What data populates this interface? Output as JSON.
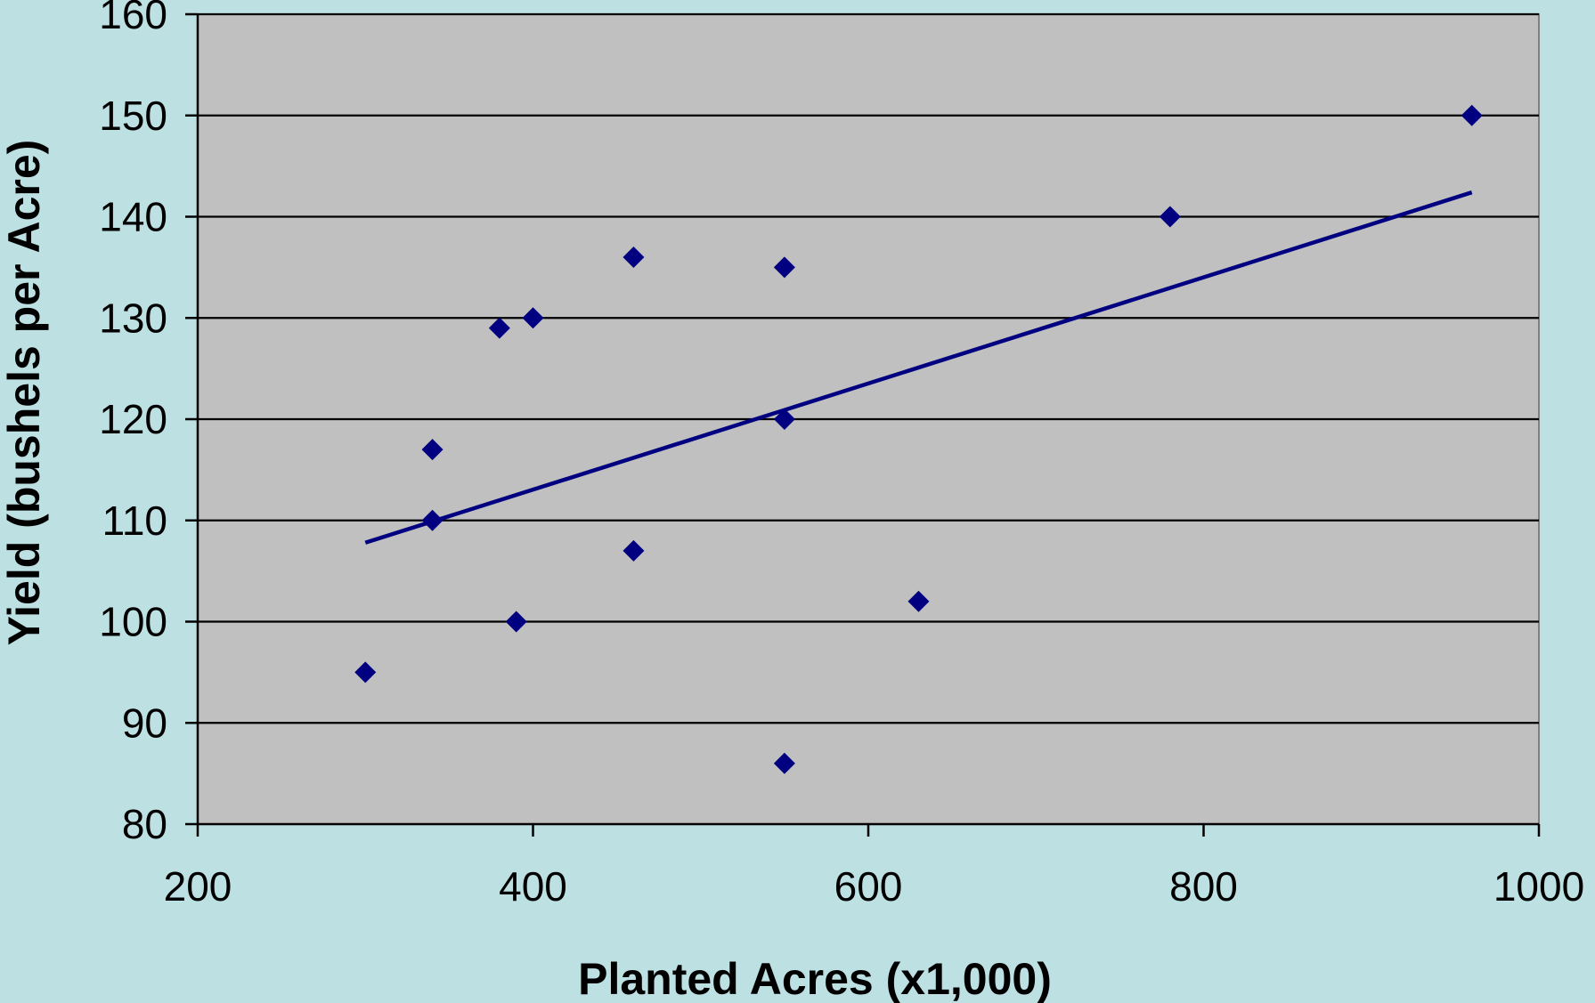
{
  "chart_data": {
    "type": "scatter",
    "title": "",
    "xlabel": "Planted Acres (x1,000)",
    "ylabel": "Yield (bushels per Acre)",
    "xlim": [
      200,
      1000
    ],
    "ylim": [
      80,
      160
    ],
    "xticks": [
      200,
      400,
      600,
      800,
      1000
    ],
    "yticks": [
      80,
      90,
      100,
      110,
      120,
      130,
      140,
      150,
      160
    ],
    "xtick_labels": [
      "200",
      "400",
      "600",
      "800",
      "1000"
    ],
    "ytick_labels": [
      "80",
      "90",
      "100",
      "110",
      "120",
      "130",
      "140",
      "150",
      "160"
    ],
    "grid": "horizontal",
    "legend": "none",
    "series": [
      {
        "marker": "diamond",
        "points": [
          {
            "x": 300,
            "y": 95
          },
          {
            "x": 340,
            "y": 117
          },
          {
            "x": 340,
            "y": 110
          },
          {
            "x": 380,
            "y": 129
          },
          {
            "x": 390,
            "y": 100
          },
          {
            "x": 400,
            "y": 130
          },
          {
            "x": 460,
            "y": 136
          },
          {
            "x": 460,
            "y": 107
          },
          {
            "x": 550,
            "y": 135
          },
          {
            "x": 550,
            "y": 120
          },
          {
            "x": 550,
            "y": 86
          },
          {
            "x": 630,
            "y": 102
          },
          {
            "x": 780,
            "y": 140
          },
          {
            "x": 960,
            "y": 150
          }
        ]
      }
    ],
    "trendline": {
      "type": "linear",
      "from": {
        "x": 300,
        "y": 107.8
      },
      "to": {
        "x": 960,
        "y": 142.4
      }
    }
  },
  "colors": {
    "background": "#bde0e3",
    "plot_area": "#c0c0c0",
    "gridline": "#000000",
    "marker": "#000080",
    "trendline": "#000080"
  }
}
